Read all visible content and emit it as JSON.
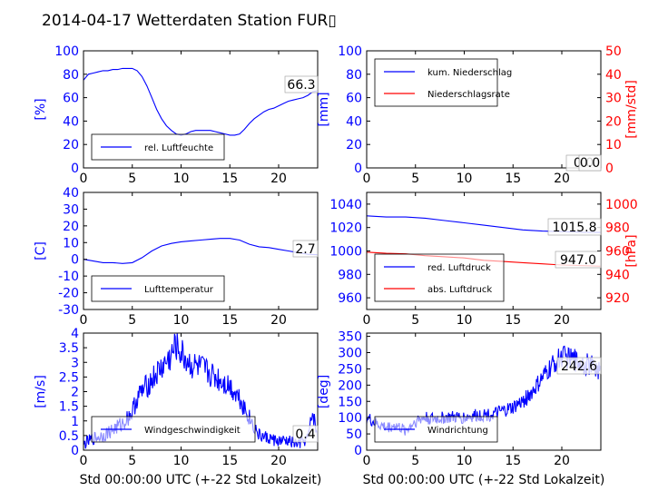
{
  "title": "2014-04-17 Wetterdaten Station FUR▯",
  "xlabel": "Std 00:00:00 UTC (+-22 Std Lokalzeit)",
  "colors": {
    "blue": "#0000ff",
    "red": "#ff0000",
    "axis": "#000000"
  },
  "chart_data": [
    {
      "type": "line",
      "panel": "humidity",
      "ylabel": "[%]",
      "xlim": [
        0,
        24
      ],
      "ylim": [
        0,
        100
      ],
      "xticks": [
        0,
        5,
        10,
        15,
        20
      ],
      "yticks": [
        0,
        20,
        40,
        60,
        80,
        100
      ],
      "legend_position": "lower-left",
      "value_label": "66.3",
      "series": [
        {
          "name": "rel. Luftfeuchte",
          "color": "#0000ff",
          "x": [
            0,
            0.5,
            1,
            1.5,
            2,
            2.5,
            3,
            3.5,
            4,
            4.5,
            5,
            5.5,
            6,
            6.5,
            7,
            7.5,
            8,
            8.5,
            9,
            9.5,
            10,
            10.5,
            11,
            11.5,
            12,
            12.5,
            13,
            13.5,
            14,
            14.5,
            15,
            15.5,
            16,
            16.5,
            17,
            17.5,
            18,
            18.5,
            19,
            19.5,
            20,
            20.5,
            21,
            21.5,
            22,
            22.5,
            23,
            23.5,
            24
          ],
          "y": [
            75,
            80,
            81,
            82,
            83,
            83,
            84,
            84,
            85,
            85,
            85,
            83,
            78,
            70,
            60,
            50,
            42,
            36,
            32,
            29,
            28,
            29,
            31,
            32,
            32,
            32,
            32,
            31,
            30,
            29,
            28,
            28,
            29,
            33,
            38,
            42,
            45,
            48,
            50,
            51,
            53,
            55,
            57,
            58,
            59,
            60,
            62,
            65,
            66
          ]
        }
      ]
    },
    {
      "type": "line",
      "panel": "precipitation",
      "ylabel": "[mm]",
      "ylabel_right": "[mm/std]",
      "xlim": [
        0,
        24
      ],
      "ylim": [
        0,
        100
      ],
      "ylim_right": [
        0,
        50
      ],
      "xticks": [
        0,
        5,
        10,
        15,
        20
      ],
      "yticks": [
        0,
        20,
        40,
        60,
        80,
        100
      ],
      "yticks_right": [
        0,
        10,
        20,
        30,
        40,
        50
      ],
      "legend_position": "upper-left",
      "value_label": "0.0",
      "value_label_2": "0.0",
      "series": [
        {
          "name": "kum. Niederschlag",
          "color": "#0000ff",
          "x": [
            0,
            24
          ],
          "y": [
            0,
            0
          ]
        },
        {
          "name": "Niederschlagsrate",
          "color": "#ff0000",
          "x": [
            0,
            24
          ],
          "y": [
            0,
            0
          ]
        }
      ]
    },
    {
      "type": "line",
      "panel": "temperature",
      "ylabel": "[C]",
      "xlim": [
        0,
        24
      ],
      "ylim": [
        -30,
        40
      ],
      "xticks": [
        0,
        5,
        10,
        15,
        20
      ],
      "yticks": [
        -30,
        -20,
        -10,
        0,
        10,
        20,
        30,
        40
      ],
      "legend_position": "lower-left",
      "value_label": "2.7",
      "series": [
        {
          "name": "Lufttemperatur",
          "color": "#0000ff",
          "x": [
            0,
            1,
            2,
            3,
            4,
            5,
            6,
            7,
            8,
            9,
            10,
            11,
            12,
            13,
            14,
            15,
            16,
            17,
            18,
            19,
            20,
            21,
            22,
            23,
            24
          ],
          "y": [
            0,
            -1,
            -2,
            -2,
            -2.5,
            -2,
            1,
            5,
            8,
            9.5,
            10.5,
            11,
            11.5,
            12,
            12.5,
            12.5,
            11.5,
            9,
            7.5,
            7,
            6,
            5,
            4,
            3,
            2.7
          ]
        }
      ]
    },
    {
      "type": "line",
      "panel": "pressure",
      "ylabel_right": "[hPa]",
      "xlim": [
        0,
        24
      ],
      "ylim": [
        950,
        1050
      ],
      "ylim_right": [
        910,
        1010
      ],
      "xticks": [
        0,
        5,
        10,
        15,
        20
      ],
      "yticks": [
        960,
        980,
        1000,
        1020,
        1040
      ],
      "yticks_right": [
        920,
        940,
        960,
        980,
        1000
      ],
      "legend_position": "lower-left",
      "value_label": "1015.8",
      "value_label_2": "947.0",
      "series": [
        {
          "name": "red. Luftdruck",
          "color": "#0000ff",
          "axis": "left",
          "x": [
            0,
            2,
            4,
            6,
            8,
            10,
            12,
            14,
            16,
            18,
            20,
            22,
            24
          ],
          "y": [
            1030,
            1029,
            1029,
            1028,
            1026,
            1024,
            1022,
            1020,
            1018,
            1017,
            1016.5,
            1016,
            1015.8
          ]
        },
        {
          "name": "abs. Luftdruck",
          "color": "#ff0000",
          "axis": "right",
          "x": [
            0,
            2,
            4,
            6,
            8,
            10,
            12,
            14,
            16,
            18,
            20,
            22,
            24
          ],
          "y": [
            959,
            958,
            957.5,
            956,
            955,
            954,
            952,
            951,
            950,
            949,
            948,
            947.5,
            947
          ]
        }
      ]
    },
    {
      "type": "line",
      "panel": "windspeed",
      "ylabel": "[m/s]",
      "xlim": [
        0,
        24
      ],
      "ylim": [
        0,
        4
      ],
      "xticks": [
        0,
        5,
        10,
        15,
        20
      ],
      "yticks": [
        0,
        0.5,
        1,
        1.5,
        2,
        2.5,
        3,
        3.5,
        4
      ],
      "legend_position": "lower-left",
      "value_label": "0.4",
      "series": [
        {
          "name": "Windgeschwindigkeit",
          "color": "#0000ff",
          "x": [
            0,
            1,
            2,
            3,
            4,
            5,
            5.5,
            6,
            7,
            8,
            9,
            9.5,
            10,
            11,
            12,
            13,
            14,
            15,
            16,
            17,
            18,
            19,
            20,
            21,
            22,
            23,
            23.5,
            24
          ],
          "y": [
            0.2,
            0.4,
            0.5,
            0.7,
            0.9,
            1.3,
            1.8,
            2.0,
            2.4,
            2.8,
            3.2,
            3.6,
            3.3,
            2.9,
            2.8,
            2.6,
            2.4,
            2.2,
            1.8,
            1.1,
            0.5,
            0.4,
            0.3,
            0.3,
            0.2,
            0.4,
            1.3,
            0.4
          ],
          "noise": 0.9
        }
      ]
    },
    {
      "type": "line",
      "panel": "winddirection",
      "ylabel": "[deg]",
      "xlim": [
        0,
        24
      ],
      "ylim": [
        0,
        360
      ],
      "xticks": [
        0,
        5,
        10,
        15,
        20
      ],
      "yticks": [
        0,
        50,
        100,
        150,
        200,
        250,
        300,
        350
      ],
      "legend_position": "lower-left",
      "value_label": "242.6",
      "series": [
        {
          "name": "Windrichtung",
          "color": "#0000ff",
          "x": [
            0,
            1,
            2,
            3,
            4,
            5,
            6,
            7,
            8,
            9,
            10,
            11,
            12,
            13,
            14,
            15,
            16,
            17,
            18,
            19,
            20,
            21,
            22,
            23,
            24
          ],
          "y": [
            100,
            80,
            70,
            75,
            60,
            90,
            100,
            95,
            100,
            100,
            100,
            105,
            110,
            110,
            120,
            130,
            150,
            180,
            220,
            260,
            290,
            280,
            270,
            260,
            242
          ],
          "noise": 60
        }
      ]
    }
  ]
}
